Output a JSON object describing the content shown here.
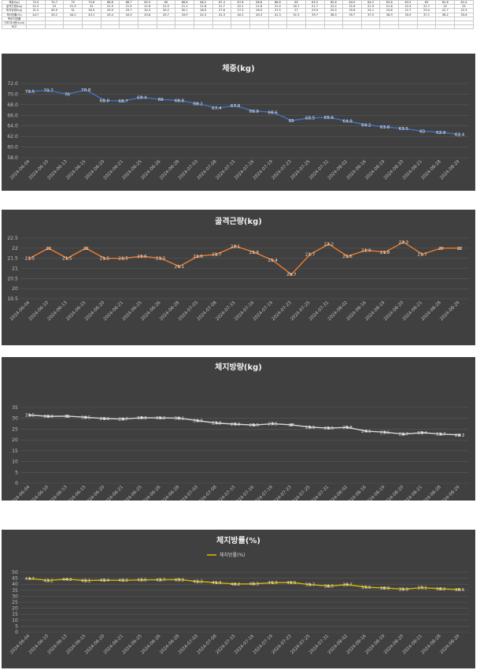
{
  "table": {
    "row_labels": [
      "체중(kg)",
      "골격근량(kg)",
      "체지방량(kg)",
      "체지방률(%)",
      "복부지방률",
      "기초대사량(kcal)",
      "비고"
    ],
    "rows": [
      [
        "70.5",
        "70.7",
        "70",
        "70.8",
        "68.8",
        "68.7",
        "69.4",
        "69",
        "68.8",
        "68.2",
        "67.4",
        "67.8",
        "66.8",
        "66.6",
        "65",
        "65.5",
        "65.6",
        "64.9",
        "64.2",
        "63.8",
        "63.5",
        "63",
        "62.8",
        "62.4"
      ],
      [
        "21.5",
        "22",
        "21.5",
        "22",
        "21.5",
        "21.5",
        "21.6",
        "21.5",
        "21.1",
        "21.6",
        "21.7",
        "22.1",
        "21.8",
        "21.4",
        "20.7",
        "21.7",
        "22.2",
        "21.6",
        "21.9",
        "21.8",
        "22.3",
        "21.7",
        "22",
        "22"
      ],
      [
        "31.5",
        "30.9",
        "31",
        "30.5",
        "29.9",
        "29.7",
        "30.3",
        "30.2",
        "30.1",
        "28.9",
        "27.8",
        "27.3",
        "26.9",
        "27.5",
        "27",
        "25.9",
        "25.5",
        "25.8",
        "24.1",
        "23.6",
        "22.7",
        "23.4",
        "22.7",
        "22.3"
      ],
      [
        "44.7",
        "43.2",
        "44.2",
        "43.1",
        "43.4",
        "43.3",
        "43.6",
        "43.7",
        "43.9",
        "42.3",
        "41.3",
        "40.2",
        "40.3",
        "41.3",
        "41.5",
        "39.7",
        "38.5",
        "39.7",
        "37.5",
        "36.9",
        "35.9",
        "37.1",
        "36.2",
        "35.6"
      ],
      [
        "",
        "",
        "",
        "",
        "",
        "",
        "",
        "",
        "",
        "",
        "",
        "",
        "",
        "",
        "",
        "",
        "",
        "",
        "",
        "",
        "",
        "",
        "",
        ""
      ],
      [
        "",
        "",
        "",
        "",
        "",
        "",
        "",
        "",
        "",
        "",
        "",
        "",
        "",
        "",
        "",
        "",
        "",
        "",
        "",
        "",
        "",
        "",
        "",
        ""
      ],
      [
        "",
        "",
        "",
        "",
        "",
        "",
        "",
        "",
        "",
        "",
        "",
        "",
        "",
        "",
        "",
        "",
        "",
        "",
        "",
        "",
        "",
        "",
        "",
        ""
      ]
    ]
  },
  "chart_data": [
    {
      "type": "line",
      "title": "체중(kg)",
      "color": "#4472c4",
      "categories": [
        "2024-06-04",
        "2024-06-10",
        "2024-06-13",
        "2024-06-15",
        "2024-06-20",
        "2024-06-21",
        "2024-06-25",
        "2024-06-26",
        "2024-06-28",
        "2024-07-03",
        "2024-07-08",
        "2024-07-15",
        "2024-07-16",
        "2024-07-19",
        "2024-07-23",
        "2024-07-25",
        "2024-07-31",
        "2024-08-02",
        "2024-08-16",
        "2024-08-19",
        "2024-08-20",
        "2024-08-21",
        "2024-08-28",
        "2024-08-29"
      ],
      "values": [
        70.5,
        70.7,
        70,
        70.8,
        68.8,
        68.7,
        69.4,
        69,
        68.8,
        68.2,
        67.4,
        67.8,
        66.8,
        66.6,
        65,
        65.5,
        65.6,
        64.9,
        64.2,
        63.8,
        63.5,
        63,
        62.8,
        62.4
      ],
      "ylim": [
        58,
        72
      ],
      "yticks": [
        "58.0",
        "60.0",
        "62.0",
        "64.0",
        "66.0",
        "68.0",
        "70.0",
        "72.0"
      ],
      "grid": true,
      "legend": ""
    },
    {
      "type": "line",
      "title": "골격근량(kg)",
      "color": "#ed7d31",
      "categories": [
        "2024-06-04",
        "2024-06-10",
        "2024-06-13",
        "2024-06-15",
        "2024-06-20",
        "2024-06-21",
        "2024-06-25",
        "2024-06-26",
        "2024-06-28",
        "2024-07-03",
        "2024-07-08",
        "2024-07-15",
        "2024-07-16",
        "2024-07-19",
        "2024-07-23",
        "2024-07-25",
        "2024-07-31",
        "2024-08-02",
        "2024-08-16",
        "2024-08-19",
        "2024-08-20",
        "2024-08-21",
        "2024-08-28",
        "2024-08-29"
      ],
      "values": [
        21.5,
        22,
        21.5,
        22,
        21.5,
        21.5,
        21.6,
        21.5,
        21.1,
        21.6,
        21.7,
        22.1,
        21.8,
        21.4,
        20.7,
        21.7,
        22.2,
        21.6,
        21.9,
        21.8,
        22.3,
        21.7,
        22,
        22
      ],
      "ylim": [
        19.5,
        22.5
      ],
      "yticks": [
        "19.5",
        "20",
        "20.5",
        "21",
        "21.5",
        "22",
        "22.5"
      ],
      "grid": true,
      "legend": ""
    },
    {
      "type": "line",
      "title": "체지방량(kg)",
      "color": "#d9d9d9",
      "categories": [
        "2024-06-04",
        "2024-06-10",
        "2024-06-13",
        "2024-06-15",
        "2024-06-20",
        "2024-06-21",
        "2024-06-25",
        "2024-06-26",
        "2024-06-28",
        "2024-07-03",
        "2024-07-08",
        "2024-07-15",
        "2024-07-16",
        "2024-07-19",
        "2024-07-23",
        "2024-07-25",
        "2024-07-31",
        "2024-08-02",
        "2024-08-16",
        "2024-08-19",
        "2024-08-20",
        "2024-08-21",
        "2024-08-28",
        "2024-08-29"
      ],
      "values": [
        31.5,
        30.9,
        31,
        30.5,
        29.9,
        29.7,
        30.3,
        30.2,
        30.1,
        28.9,
        27.8,
        27.3,
        26.9,
        27.5,
        27,
        25.9,
        25.5,
        25.8,
        24.1,
        23.6,
        22.7,
        23.4,
        22.7,
        22.3
      ],
      "ylim": [
        0,
        35
      ],
      "yticks": [
        "0",
        "5",
        "10",
        "15",
        "20",
        "25",
        "30",
        "35"
      ],
      "grid": true,
      "legend": ""
    },
    {
      "type": "line",
      "title": "체지방률(%)",
      "color": "#d4b800",
      "categories": [
        "2024-06-04",
        "2024-06-10",
        "2024-06-13",
        "2024-06-15",
        "2024-06-20",
        "2024-06-21",
        "2024-06-25",
        "2024-06-26",
        "2024-06-28",
        "2024-07-03",
        "2024-07-08",
        "2024-07-15",
        "2024-07-16",
        "2024-07-19",
        "2024-07-23",
        "2024-07-25",
        "2024-07-31",
        "2024-08-02",
        "2024-08-16",
        "2024-08-19",
        "2024-08-20",
        "2024-08-21",
        "2024-08-28",
        "2024-08-29"
      ],
      "values": [
        44.7,
        43.2,
        44.2,
        43.1,
        43.4,
        43.3,
        43.6,
        43.7,
        43.9,
        42.3,
        41.3,
        40.2,
        40.3,
        41.3,
        41.5,
        39.7,
        38.5,
        39.7,
        37.5,
        36.9,
        35.9,
        37.1,
        36.2,
        35.6
      ],
      "ylim": [
        0,
        50
      ],
      "yticks": [
        "0",
        "5",
        "10",
        "15",
        "20",
        "25",
        "30",
        "35",
        "40",
        "45",
        "50"
      ],
      "grid": true,
      "legend": "top-center",
      "series_name": "체지방률(%)"
    }
  ]
}
